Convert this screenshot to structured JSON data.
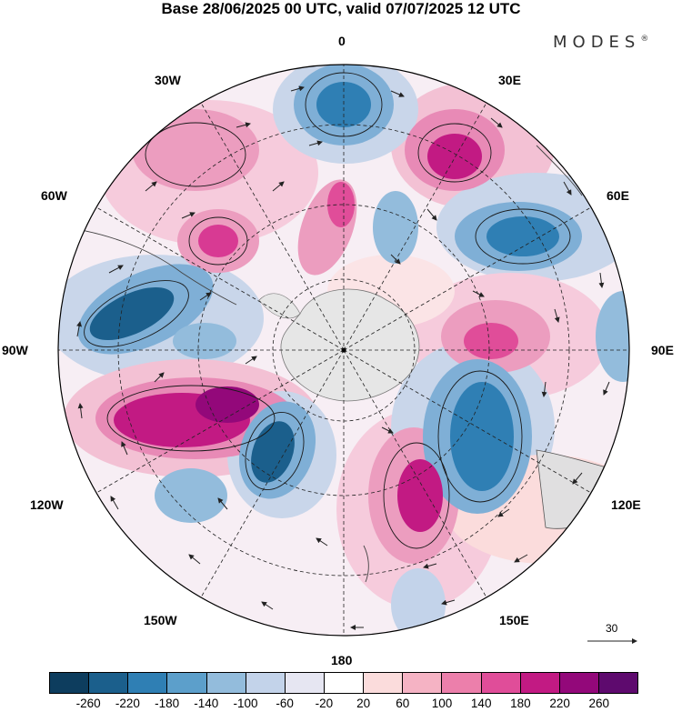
{
  "title": "Base 28/06/2025 00 UTC, valid 07/07/2025 12 UTC",
  "brand": "MODES",
  "brand_mark": "®",
  "longitude_labels": {
    "lon_0": "0",
    "lon_30e": "30E",
    "lon_60e": "60E",
    "lon_90e": "90E",
    "lon_120e": "120E",
    "lon_150e": "150E",
    "lon_180": "180",
    "lon_150w": "150W",
    "lon_120w": "120W",
    "lon_90w": "90W",
    "lon_60w": "60W",
    "lon_30w": "30W"
  },
  "vector_scale": {
    "value": "30",
    "icon": "right-arrow-icon"
  },
  "colorbar": {
    "colors": [
      "#0d3d5e",
      "#1b5f8c",
      "#2f7fb4",
      "#5c9fcb",
      "#93bcdc",
      "#c3d3ea",
      "#e6e6f2",
      "#ffffff",
      "#fbdcdc",
      "#f5b3c4",
      "#ec7fab",
      "#e04d99",
      "#c21a83",
      "#93087a",
      "#5e0a6e"
    ],
    "labels": [
      "-260",
      "-220",
      "-180",
      "-140",
      "-100",
      "-60",
      "-20",
      "20",
      "60",
      "100",
      "140",
      "180",
      "220",
      "260"
    ]
  },
  "map_features": {
    "projection": "south-polar-stereographic",
    "field": "shaded anomaly with wind vectors",
    "grid_circles": "dashed"
  }
}
